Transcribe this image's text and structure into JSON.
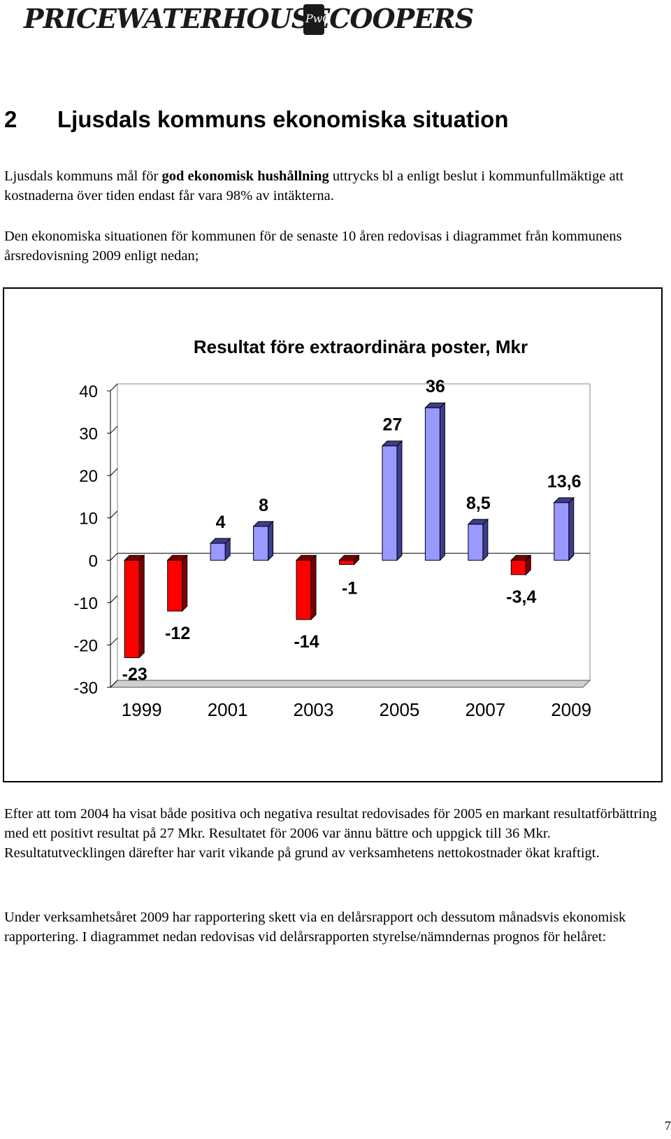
{
  "header": {
    "logo_text": "PRICEWATERHOUSECOOPERS",
    "logo_mark_text": "PwC"
  },
  "section": {
    "number": "2",
    "title": "Ljusdals kommuns ekonomiska situation",
    "p1_before": "Ljusdals kommuns mål för ",
    "p1_bold": "god ekonomisk hushållning",
    "p1_after": " uttrycks bl a enligt beslut i kommunfullmäktige att kostnaderna över tiden endast får vara 98% av intäkterna.",
    "p2": "Den ekonomiska situationen för kommunen för de senaste 10 åren redovisas i diagrammet från kommunens årsredovisning 2009 enligt nedan;",
    "p3": "Efter att tom 2004 ha visat både positiva och negativa resultat redovisades för 2005 en markant resultatförbättring med ett positivt resultat på 27 Mkr. Resultatet för 2006 var ännu bättre och uppgick till 36 Mkr. Resultatutvecklingen därefter har varit vikande på grund av verksamhetens nettokostnader ökat kraftigt.",
    "p4": "Under verksamhetsåret 2009 har rapportering skett via en delårsrapport och dessutom månadsvis ekonomisk rapportering. I diagrammet nedan redovisas vid delårsrapporten styrelse/nämndernas prognos för helåret:"
  },
  "chart_data": {
    "type": "bar",
    "title": "Resultat före extraordinära poster, Mkr",
    "categories": [
      "1999",
      "2000",
      "2001",
      "2002",
      "2003",
      "2004",
      "2005",
      "2006",
      "2007",
      "2008",
      "2009"
    ],
    "values": [
      -23,
      -12,
      4,
      8,
      -14,
      -1,
      27,
      36,
      8.5,
      -3.4,
      13.6
    ],
    "data_labels": [
      "-23",
      "-12",
      "4",
      "8",
      "-14",
      "-1",
      "27",
      "36",
      "8,5",
      "-3,4",
      "13,6"
    ],
    "x_tick_labels": [
      "1999",
      "2001",
      "2003",
      "2005",
      "2007",
      "2009"
    ],
    "y_tick_labels": [
      "40",
      "30",
      "20",
      "10",
      "0",
      "-10",
      "-20",
      "-30"
    ],
    "ylim": [
      -30,
      40
    ],
    "xlabel": "",
    "ylabel": "",
    "colors": {
      "positive": "#9999FF",
      "negative": "#FF0000",
      "positive_side": "#3d3d8f",
      "negative_side": "#7a0000"
    },
    "grid": false,
    "legend": "none"
  },
  "footer": {
    "page_number": "7"
  }
}
